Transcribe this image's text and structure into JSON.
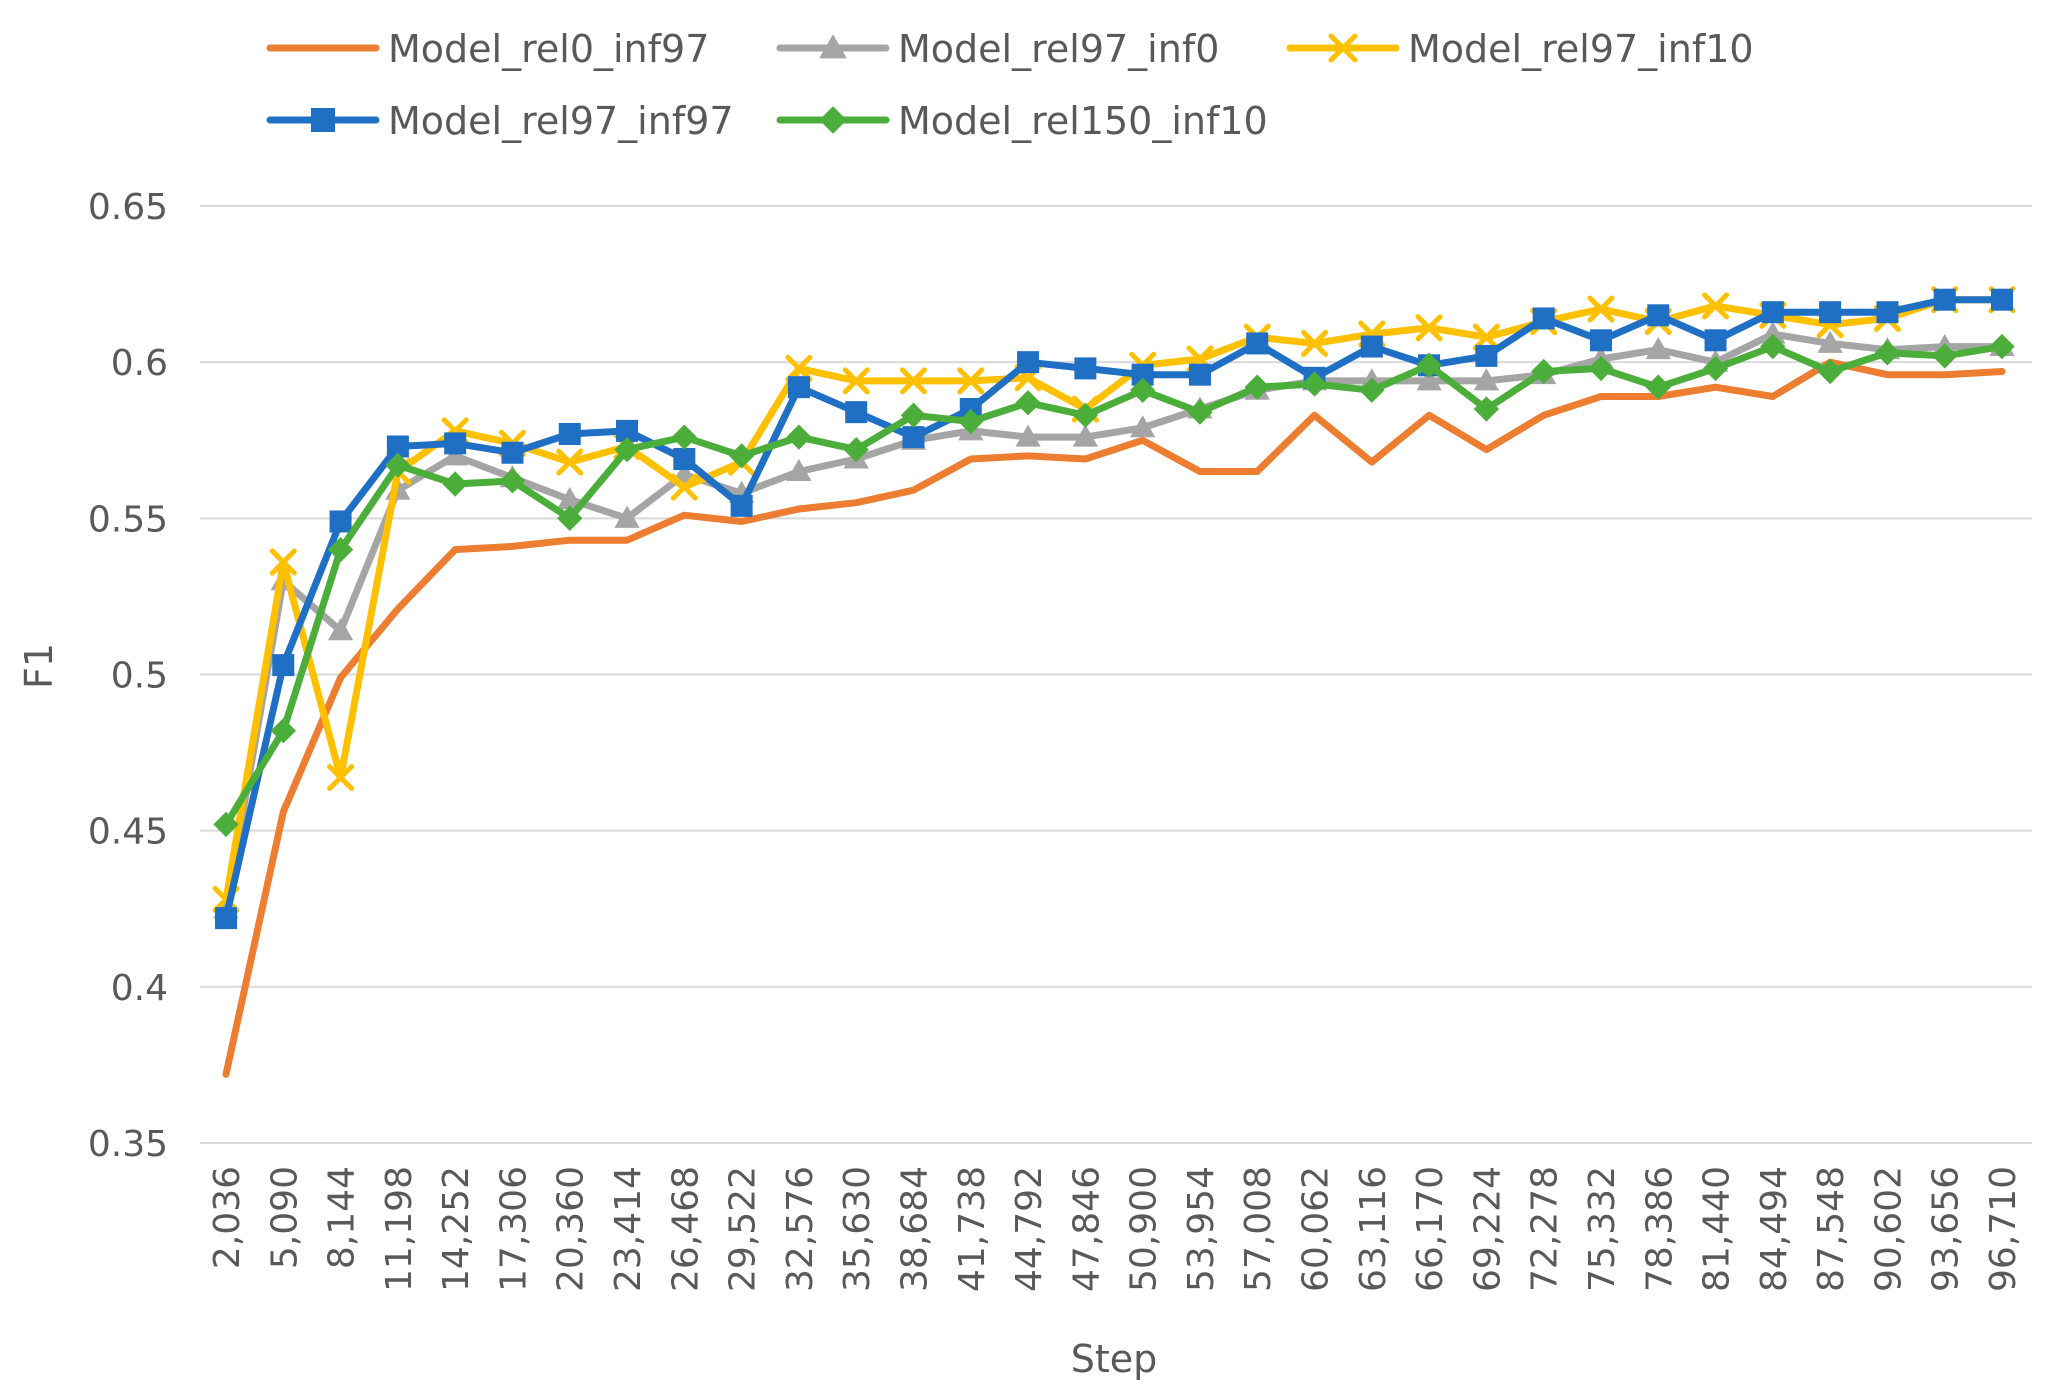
{
  "chart_data": {
    "type": "line",
    "title": "",
    "xlabel": "Step",
    "ylabel": "F1",
    "ylim": [
      0.35,
      0.65
    ],
    "yticks": [
      0.35,
      0.4,
      0.45,
      0.5,
      0.55,
      0.6,
      0.65
    ],
    "ytick_labels": [
      "0.35",
      "0.4",
      "0.45",
      "0.5",
      "0.55",
      "0.6",
      "0.65"
    ],
    "grid": true,
    "legend_position": "top",
    "categories": [
      "2,036",
      "5,090",
      "8,144",
      "11,198",
      "14,252",
      "17,306",
      "20,360",
      "23,414",
      "26,468",
      "29,522",
      "32,576",
      "35,630",
      "38,684",
      "41,738",
      "44,792",
      "47,846",
      "50,900",
      "53,954",
      "57,008",
      "60,062",
      "63,116",
      "66,170",
      "69,224",
      "72,278",
      "75,332",
      "78,386",
      "81,440",
      "84,494",
      "87,548",
      "90,602",
      "93,656",
      "96,710"
    ],
    "series": [
      {
        "name": "Model_rel0_inf97",
        "color": "#ED7D31",
        "marker": "none",
        "values": [
          0.372,
          0.456,
          0.499,
          0.521,
          0.54,
          0.541,
          0.543,
          0.543,
          0.551,
          0.549,
          0.553,
          0.555,
          0.559,
          0.569,
          0.57,
          0.569,
          0.575,
          0.565,
          0.565,
          0.583,
          0.568,
          0.583,
          0.572,
          0.583,
          0.589,
          0.589,
          0.592,
          0.589,
          0.6,
          0.596,
          0.596,
          0.597
        ]
      },
      {
        "name": "Model_rel97_inf0",
        "color": "#A5A5A5",
        "marker": "triangle",
        "values": [
          0.425,
          0.53,
          0.514,
          0.559,
          0.57,
          0.563,
          0.556,
          0.55,
          0.564,
          0.558,
          0.565,
          0.569,
          0.575,
          0.578,
          0.576,
          0.576,
          0.579,
          0.585,
          0.591,
          0.594,
          0.594,
          0.594,
          0.594,
          0.596,
          0.601,
          0.604,
          0.6,
          0.609,
          0.606,
          0.604,
          0.605,
          0.605
        ]
      },
      {
        "name": "Model_rel97_inf10",
        "color": "#FFC000",
        "marker": "x",
        "values": [
          0.428,
          0.536,
          0.467,
          0.565,
          0.578,
          0.574,
          0.568,
          0.573,
          0.56,
          0.568,
          0.598,
          0.594,
          0.594,
          0.594,
          0.595,
          0.585,
          0.599,
          0.601,
          0.608,
          0.606,
          0.609,
          0.611,
          0.608,
          0.613,
          0.617,
          0.613,
          0.618,
          0.615,
          0.612,
          0.614,
          0.62,
          0.62
        ]
      },
      {
        "name": "Model_rel97_inf97",
        "color": "#1F6FC4",
        "marker": "square",
        "values": [
          0.422,
          0.503,
          0.549,
          0.573,
          0.574,
          0.571,
          0.577,
          0.578,
          0.569,
          0.554,
          0.592,
          0.584,
          0.576,
          0.585,
          0.6,
          0.598,
          0.596,
          0.596,
          0.606,
          0.595,
          0.605,
          0.599,
          0.602,
          0.614,
          0.607,
          0.615,
          0.607,
          0.616,
          0.616,
          0.616,
          0.62,
          0.62
        ]
      },
      {
        "name": "Model_rel150_inf10",
        "color": "#4CAE3A",
        "marker": "diamond",
        "values": [
          0.452,
          0.482,
          0.54,
          0.567,
          0.561,
          0.562,
          0.55,
          0.572,
          0.576,
          0.57,
          0.576,
          0.572,
          0.583,
          0.581,
          0.587,
          0.583,
          0.591,
          0.584,
          0.592,
          0.593,
          0.591,
          0.599,
          0.585,
          0.597,
          0.598,
          0.592,
          0.598,
          0.605,
          0.597,
          0.603,
          0.602,
          0.605
        ]
      }
    ]
  }
}
